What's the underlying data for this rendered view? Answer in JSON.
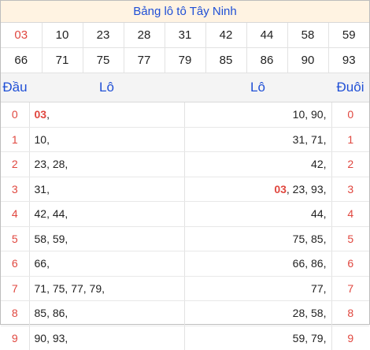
{
  "title": "Bảng lô tô Tây Ninh",
  "numbers_row1": [
    "03",
    "10",
    "23",
    "28",
    "31",
    "42",
    "44",
    "58",
    "59"
  ],
  "numbers_row2": [
    "66",
    "71",
    "75",
    "77",
    "79",
    "85",
    "86",
    "90",
    "93"
  ],
  "headers": {
    "dau": "Đầu",
    "lo_left": "Lô",
    "lo_right": "Lô",
    "duoi": "Đuôi"
  },
  "rows": [
    {
      "dau": "0",
      "left_hl": "03",
      "left": ",",
      "right_hl": "",
      "right": "10, 90,",
      "duoi": "0"
    },
    {
      "dau": "1",
      "left_hl": "",
      "left": "10,",
      "right_hl": "",
      "right": "31, 71,",
      "duoi": "1"
    },
    {
      "dau": "2",
      "left_hl": "",
      "left": "23, 28,",
      "right_hl": "",
      "right": "42,",
      "duoi": "2"
    },
    {
      "dau": "3",
      "left_hl": "",
      "left": "31,",
      "right_hl": "03",
      "right": ", 23, 93,",
      "duoi": "3"
    },
    {
      "dau": "4",
      "left_hl": "",
      "left": "42, 44,",
      "right_hl": "",
      "right": "44,",
      "duoi": "4"
    },
    {
      "dau": "5",
      "left_hl": "",
      "left": "58, 59,",
      "right_hl": "",
      "right": "75, 85,",
      "duoi": "5"
    },
    {
      "dau": "6",
      "left_hl": "",
      "left": "66,",
      "right_hl": "",
      "right": "66, 86,",
      "duoi": "6"
    },
    {
      "dau": "7",
      "left_hl": "",
      "left": "71, 75, 77, 79,",
      "right_hl": "",
      "right": "77,",
      "duoi": "7"
    },
    {
      "dau": "8",
      "left_hl": "",
      "left": "85, 86,",
      "right_hl": "",
      "right": "28, 58,",
      "duoi": "8"
    },
    {
      "dau": "9",
      "left_hl": "",
      "left": "90, 93,",
      "right_hl": "",
      "right": "59, 79,",
      "duoi": "9"
    }
  ],
  "colors": {
    "accent_blue": "#1f4fd6",
    "red": "#e0473f",
    "title_bg": "#fff3e2"
  }
}
